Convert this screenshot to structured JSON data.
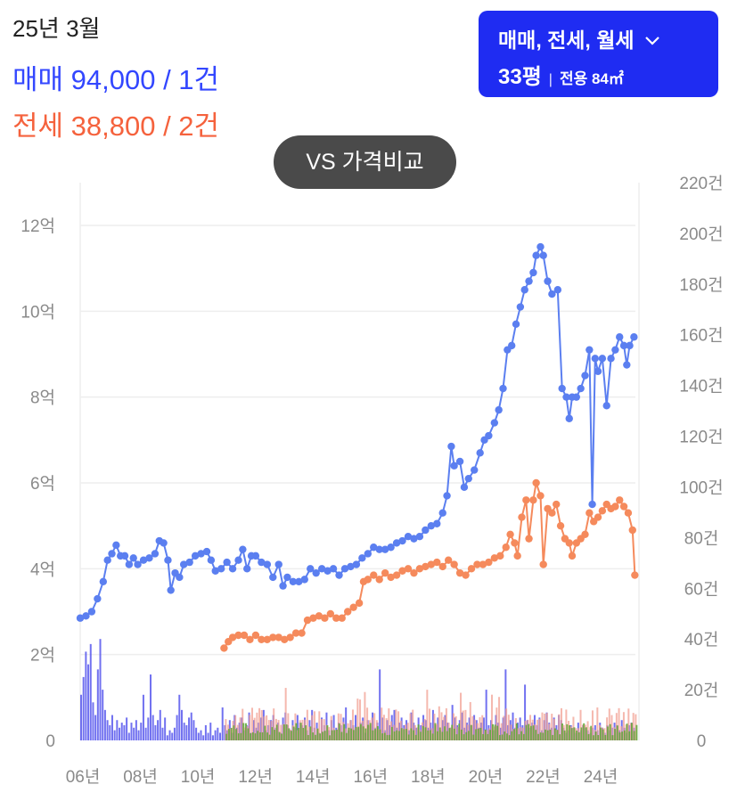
{
  "header": {
    "period": "25년 3월",
    "sale_summary": "매매 94,000 / 1건",
    "jeonse_summary": "전세 38,800 / 2건"
  },
  "filter": {
    "type_label": "매매, 전세, 월세",
    "pyeong": "33평",
    "separator": "|",
    "area_label": "전용 84㎡"
  },
  "compare_button": {
    "label": "VS 가격비교"
  },
  "colors": {
    "sale": "#5b7ff0",
    "jeonse": "#f58a5c",
    "sale_volume": "#4d4dec",
    "jeonse_volume": "#f2a093",
    "wolse_volume": "#5aa832",
    "grid": "#eeeeee"
  },
  "chart_data": {
    "type": "line",
    "x_axis": {
      "range": [
        2006,
        2025.3
      ],
      "tick_labels": [
        "06년",
        "08년",
        "10년",
        "12년",
        "14년",
        "16년",
        "18년",
        "20년",
        "22년",
        "24년"
      ],
      "tick_values": [
        2006,
        2008,
        2010,
        2012,
        2014,
        2016,
        2018,
        2020,
        2022,
        2024
      ]
    },
    "y_left": {
      "range": [
        0,
        12
      ],
      "unit": "억",
      "tick_labels": [
        "0",
        "2억",
        "4억",
        "6억",
        "8억",
        "10억",
        "12억"
      ],
      "tick_values": [
        0,
        2,
        4,
        6,
        8,
        10,
        12
      ]
    },
    "y_right": {
      "range": [
        0,
        220
      ],
      "unit": "건",
      "tick_labels": [
        "0",
        "20건",
        "40건",
        "60건",
        "80건",
        "100건",
        "120건",
        "140건",
        "160건",
        "180건",
        "200건",
        "220건"
      ],
      "tick_values": [
        0,
        20,
        40,
        60,
        80,
        100,
        120,
        140,
        160,
        180,
        200,
        220
      ]
    },
    "grid": true,
    "series": [
      {
        "name": "매매",
        "axis": "left",
        "style": "line-dot",
        "points": [
          [
            2006.0,
            2.85
          ],
          [
            2006.2,
            2.9
          ],
          [
            2006.4,
            3.0
          ],
          [
            2006.6,
            3.3
          ],
          [
            2006.8,
            3.7
          ],
          [
            2006.95,
            4.2
          ],
          [
            2007.1,
            4.35
          ],
          [
            2007.25,
            4.55
          ],
          [
            2007.4,
            4.3
          ],
          [
            2007.55,
            4.3
          ],
          [
            2007.7,
            4.1
          ],
          [
            2007.85,
            4.25
          ],
          [
            2008.0,
            4.1
          ],
          [
            2008.2,
            4.2
          ],
          [
            2008.4,
            4.25
          ],
          [
            2008.6,
            4.35
          ],
          [
            2008.75,
            4.65
          ],
          [
            2008.9,
            4.6
          ],
          [
            2009.05,
            4.2
          ],
          [
            2009.15,
            3.5
          ],
          [
            2009.3,
            3.9
          ],
          [
            2009.45,
            3.8
          ],
          [
            2009.6,
            4.1
          ],
          [
            2009.8,
            4.15
          ],
          [
            2010.0,
            4.3
          ],
          [
            2010.2,
            4.35
          ],
          [
            2010.4,
            4.4
          ],
          [
            2010.55,
            4.2
          ],
          [
            2010.7,
            3.95
          ],
          [
            2010.9,
            4.0
          ],
          [
            2011.1,
            4.15
          ],
          [
            2011.3,
            4.0
          ],
          [
            2011.5,
            4.2
          ],
          [
            2011.65,
            4.45
          ],
          [
            2011.8,
            4.0
          ],
          [
            2011.95,
            4.3
          ],
          [
            2012.1,
            4.3
          ],
          [
            2012.3,
            4.15
          ],
          [
            2012.5,
            4.1
          ],
          [
            2012.7,
            3.8
          ],
          [
            2012.9,
            4.1
          ],
          [
            2013.05,
            3.6
          ],
          [
            2013.2,
            3.8
          ],
          [
            2013.4,
            3.7
          ],
          [
            2013.6,
            3.7
          ],
          [
            2013.8,
            3.75
          ],
          [
            2014.0,
            4.0
          ],
          [
            2014.2,
            3.9
          ],
          [
            2014.4,
            4.0
          ],
          [
            2014.6,
            3.95
          ],
          [
            2014.8,
            4.0
          ],
          [
            2015.0,
            3.85
          ],
          [
            2015.2,
            4.0
          ],
          [
            2015.4,
            4.05
          ],
          [
            2015.6,
            4.1
          ],
          [
            2015.8,
            4.25
          ],
          [
            2016.0,
            4.35
          ],
          [
            2016.2,
            4.5
          ],
          [
            2016.4,
            4.45
          ],
          [
            2016.6,
            4.45
          ],
          [
            2016.8,
            4.5
          ],
          [
            2017.0,
            4.6
          ],
          [
            2017.2,
            4.65
          ],
          [
            2017.4,
            4.75
          ],
          [
            2017.6,
            4.7
          ],
          [
            2017.8,
            4.75
          ],
          [
            2018.0,
            4.9
          ],
          [
            2018.2,
            5.0
          ],
          [
            2018.4,
            5.05
          ],
          [
            2018.6,
            5.3
          ],
          [
            2018.75,
            5.7
          ],
          [
            2018.9,
            6.85
          ],
          [
            2019.0,
            6.4
          ],
          [
            2019.2,
            6.5
          ],
          [
            2019.35,
            5.9
          ],
          [
            2019.5,
            6.1
          ],
          [
            2019.7,
            6.3
          ],
          [
            2019.9,
            6.7
          ],
          [
            2020.05,
            7.0
          ],
          [
            2020.2,
            7.1
          ],
          [
            2020.4,
            7.4
          ],
          [
            2020.55,
            7.7
          ],
          [
            2020.7,
            8.2
          ],
          [
            2020.85,
            9.1
          ],
          [
            2021.0,
            9.2
          ],
          [
            2021.15,
            9.7
          ],
          [
            2021.3,
            10.1
          ],
          [
            2021.45,
            10.5
          ],
          [
            2021.6,
            10.7
          ],
          [
            2021.75,
            10.9
          ],
          [
            2021.85,
            11.3
          ],
          [
            2022.0,
            11.5
          ],
          [
            2022.1,
            11.3
          ],
          [
            2022.25,
            10.7
          ],
          [
            2022.4,
            10.4
          ],
          [
            2022.6,
            10.5
          ],
          [
            2022.75,
            8.2
          ],
          [
            2022.9,
            8.0
          ],
          [
            2023.0,
            7.5
          ],
          [
            2023.1,
            8.0
          ],
          [
            2023.25,
            8.0
          ],
          [
            2023.4,
            8.2
          ],
          [
            2023.55,
            8.5
          ],
          [
            2023.7,
            9.1
          ],
          [
            2023.8,
            5.5
          ],
          [
            2023.9,
            8.9
          ],
          [
            2024.0,
            8.6
          ],
          [
            2024.15,
            8.9
          ],
          [
            2024.3,
            7.8
          ],
          [
            2024.45,
            8.9
          ],
          [
            2024.6,
            9.1
          ],
          [
            2024.75,
            9.4
          ],
          [
            2024.9,
            9.2
          ],
          [
            2025.0,
            8.75
          ],
          [
            2025.1,
            9.2
          ],
          [
            2025.25,
            9.4
          ]
        ]
      },
      {
        "name": "전세",
        "axis": "left",
        "style": "line-dot",
        "points": [
          [
            2011.0,
            2.15
          ],
          [
            2011.15,
            2.3
          ],
          [
            2011.3,
            2.4
          ],
          [
            2011.5,
            2.45
          ],
          [
            2011.7,
            2.45
          ],
          [
            2011.9,
            2.35
          ],
          [
            2012.1,
            2.45
          ],
          [
            2012.3,
            2.35
          ],
          [
            2012.5,
            2.35
          ],
          [
            2012.7,
            2.4
          ],
          [
            2012.9,
            2.4
          ],
          [
            2013.1,
            2.35
          ],
          [
            2013.3,
            2.4
          ],
          [
            2013.5,
            2.5
          ],
          [
            2013.7,
            2.5
          ],
          [
            2013.9,
            2.8
          ],
          [
            2014.1,
            2.85
          ],
          [
            2014.3,
            2.9
          ],
          [
            2014.5,
            2.85
          ],
          [
            2014.7,
            2.95
          ],
          [
            2014.9,
            2.85
          ],
          [
            2015.1,
            2.85
          ],
          [
            2015.3,
            3.0
          ],
          [
            2015.5,
            3.1
          ],
          [
            2015.7,
            3.2
          ],
          [
            2015.85,
            3.7
          ],
          [
            2016.0,
            3.75
          ],
          [
            2016.2,
            3.85
          ],
          [
            2016.4,
            3.75
          ],
          [
            2016.6,
            3.9
          ],
          [
            2016.8,
            3.8
          ],
          [
            2017.0,
            3.85
          ],
          [
            2017.2,
            3.95
          ],
          [
            2017.4,
            4.0
          ],
          [
            2017.6,
            3.9
          ],
          [
            2017.8,
            4.0
          ],
          [
            2018.0,
            4.05
          ],
          [
            2018.2,
            4.1
          ],
          [
            2018.4,
            4.15
          ],
          [
            2018.6,
            4.05
          ],
          [
            2018.8,
            4.2
          ],
          [
            2019.0,
            4.1
          ],
          [
            2019.2,
            3.9
          ],
          [
            2019.4,
            3.85
          ],
          [
            2019.6,
            4.0
          ],
          [
            2019.8,
            4.1
          ],
          [
            2020.0,
            4.1
          ],
          [
            2020.2,
            4.15
          ],
          [
            2020.4,
            4.25
          ],
          [
            2020.6,
            4.3
          ],
          [
            2020.8,
            4.5
          ],
          [
            2020.95,
            4.8
          ],
          [
            2021.1,
            4.6
          ],
          [
            2021.2,
            4.3
          ],
          [
            2021.35,
            5.2
          ],
          [
            2021.5,
            5.6
          ],
          [
            2021.6,
            4.7
          ],
          [
            2021.75,
            5.6
          ],
          [
            2021.85,
            6.0
          ],
          [
            2022.0,
            5.7
          ],
          [
            2022.1,
            4.1
          ],
          [
            2022.25,
            5.4
          ],
          [
            2022.4,
            5.3
          ],
          [
            2022.55,
            5.5
          ],
          [
            2022.7,
            5.0
          ],
          [
            2022.85,
            4.7
          ],
          [
            2023.0,
            4.6
          ],
          [
            2023.1,
            4.3
          ],
          [
            2023.25,
            4.6
          ],
          [
            2023.4,
            4.7
          ],
          [
            2023.55,
            4.8
          ],
          [
            2023.7,
            5.3
          ],
          [
            2023.85,
            5.1
          ],
          [
            2024.0,
            5.2
          ],
          [
            2024.15,
            5.35
          ],
          [
            2024.3,
            5.5
          ],
          [
            2024.45,
            5.4
          ],
          [
            2024.6,
            5.45
          ],
          [
            2024.75,
            5.6
          ],
          [
            2024.9,
            5.45
          ],
          [
            2025.05,
            5.3
          ],
          [
            2025.2,
            4.9
          ],
          [
            2025.28,
            3.85
          ]
        ]
      },
      {
        "name": "매매 거래량",
        "axis": "right",
        "style": "bar",
        "start": 2006.0,
        "end": 2025.3,
        "avg_start": [
          18,
          30
        ],
        "segments": [
          {
            "from": 2006.0,
            "to": 2007.0,
            "values": [
              18,
              25,
              35,
              30,
              38,
              15,
              10,
              28,
              40,
              20,
              12,
              8
            ]
          },
          {
            "from": 2007.0,
            "to": 2008.0,
            "values": [
              6,
              10,
              4,
              8,
              5,
              7,
              6,
              9,
              3,
              7,
              5,
              8
            ]
          },
          {
            "from": 2008.0,
            "to": 2009.0,
            "values": [
              4,
              7,
              18,
              5,
              9,
              26,
              10,
              6,
              8,
              12,
              5,
              9
            ]
          },
          {
            "from": 2009.0,
            "to": 2010.0,
            "values": [
              2,
              4,
              3,
              5,
              10,
              18,
              12,
              7,
              6,
              9,
              11,
              8
            ]
          },
          {
            "from": 2010.0,
            "to": 2011.0,
            "values": [
              5,
              3,
              4,
              2,
              6,
              3,
              7,
              2,
              4,
              5,
              3,
              13
            ]
          },
          {
            "from": 2011.0,
            "to": 2025.3,
            "values": [
              6,
              4,
              8,
              3,
              10,
              5,
              7,
              9,
              4,
              6,
              11,
              3,
              8,
              5,
              7,
              9,
              12,
              4,
              6,
              8,
              10,
              5,
              7,
              3,
              9,
              11,
              6,
              4,
              8,
              5,
              10,
              7,
              6,
              9,
              4,
              8,
              12,
              5,
              7,
              3,
              9,
              6,
              11,
              4,
              8,
              10,
              5,
              7,
              6,
              9,
              13,
              4,
              8,
              6,
              10,
              5,
              7,
              9,
              3,
              8,
              6,
              11,
              5,
              7,
              28,
              9,
              4,
              8,
              6,
              10,
              12,
              5,
              7,
              9,
              6,
              8,
              4,
              11,
              7,
              5,
              9,
              6,
              10,
              8,
              5,
              7,
              12,
              6,
              9,
              4,
              8,
              10,
              7,
              5,
              14,
              9,
              6,
              8,
              11,
              5,
              7,
              9,
              6,
              10,
              8,
              5,
              7,
              9,
              20,
              6,
              8,
              4,
              10,
              7,
              5,
              9,
              28,
              6,
              8,
              11,
              5,
              7,
              9,
              6,
              22,
              8,
              5,
              7,
              10,
              6,
              9,
              4,
              8,
              11,
              7,
              5,
              9,
              6,
              10,
              8,
              5,
              3,
              4,
              6,
              5,
              3,
              7,
              4,
              6,
              5,
              4,
              3,
              5,
              6,
              4,
              7,
              5,
              3,
              6,
              4,
              5,
              7,
              6,
              4,
              8,
              5,
              3,
              6,
              7,
              5
            ]
          }
        ]
      },
      {
        "name": "전세 거래량",
        "axis": "right",
        "style": "bar",
        "start": 2011.0,
        "end": 2025.3
      },
      {
        "name": "월세 거래량",
        "axis": "right",
        "style": "bar",
        "start": 2011.0,
        "end": 2025.3
      }
    ]
  }
}
